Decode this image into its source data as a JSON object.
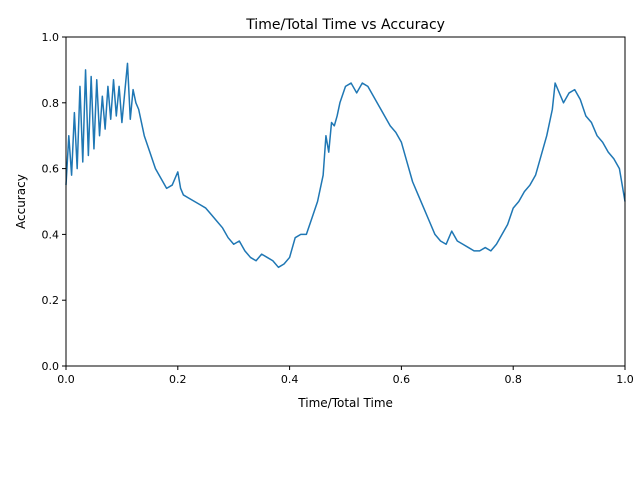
{
  "chart_data": {
    "type": "line",
    "title": "Time/Total Time vs Accuracy",
    "xlabel": "Time/Total Time",
    "ylabel": "Accuracy",
    "xlim": [
      0,
      1
    ],
    "ylim": [
      0,
      1
    ],
    "x_ticks": [
      "0.0",
      "0.2",
      "0.4",
      "0.6",
      "0.8",
      "1.0"
    ],
    "y_ticks": [
      "0.0",
      "0.2",
      "0.4",
      "0.6",
      "0.8",
      "1.0"
    ],
    "grid": false,
    "line_color": "#1f77b4",
    "series": [
      {
        "x": [
          0.0,
          0.005,
          0.01,
          0.015,
          0.02,
          0.025,
          0.03,
          0.035,
          0.04,
          0.045,
          0.05,
          0.055,
          0.06,
          0.065,
          0.07,
          0.075,
          0.08,
          0.085,
          0.09,
          0.095,
          0.1,
          0.105,
          0.11,
          0.115,
          0.12,
          0.125,
          0.13,
          0.135,
          0.14,
          0.15,
          0.16,
          0.17,
          0.18,
          0.19,
          0.2,
          0.205,
          0.21,
          0.22,
          0.23,
          0.24,
          0.25,
          0.26,
          0.27,
          0.28,
          0.29,
          0.3,
          0.31,
          0.32,
          0.33,
          0.34,
          0.35,
          0.36,
          0.37,
          0.38,
          0.39,
          0.4,
          0.41,
          0.42,
          0.43,
          0.44,
          0.45,
          0.46,
          0.465,
          0.47,
          0.475,
          0.48,
          0.485,
          0.49,
          0.5,
          0.51,
          0.52,
          0.53,
          0.54,
          0.55,
          0.56,
          0.57,
          0.58,
          0.59,
          0.6,
          0.61,
          0.62,
          0.63,
          0.64,
          0.65,
          0.66,
          0.67,
          0.68,
          0.69,
          0.7,
          0.71,
          0.72,
          0.73,
          0.74,
          0.75,
          0.76,
          0.77,
          0.78,
          0.79,
          0.8,
          0.81,
          0.82,
          0.83,
          0.84,
          0.85,
          0.86,
          0.87,
          0.875,
          0.88,
          0.89,
          0.9,
          0.91,
          0.92,
          0.93,
          0.94,
          0.95,
          0.96,
          0.97,
          0.98,
          0.99,
          1.0
        ],
        "y": [
          0.55,
          0.7,
          0.58,
          0.77,
          0.6,
          0.85,
          0.62,
          0.9,
          0.64,
          0.88,
          0.66,
          0.87,
          0.7,
          0.82,
          0.72,
          0.85,
          0.75,
          0.87,
          0.76,
          0.85,
          0.74,
          0.83,
          0.92,
          0.75,
          0.84,
          0.8,
          0.78,
          0.74,
          0.7,
          0.65,
          0.6,
          0.57,
          0.54,
          0.55,
          0.59,
          0.54,
          0.52,
          0.51,
          0.5,
          0.49,
          0.48,
          0.46,
          0.44,
          0.42,
          0.39,
          0.37,
          0.38,
          0.35,
          0.33,
          0.32,
          0.34,
          0.33,
          0.32,
          0.3,
          0.31,
          0.33,
          0.39,
          0.4,
          0.4,
          0.45,
          0.5,
          0.58,
          0.7,
          0.65,
          0.74,
          0.73,
          0.76,
          0.8,
          0.85,
          0.86,
          0.83,
          0.86,
          0.85,
          0.82,
          0.79,
          0.76,
          0.73,
          0.71,
          0.68,
          0.62,
          0.56,
          0.52,
          0.48,
          0.44,
          0.4,
          0.38,
          0.37,
          0.41,
          0.38,
          0.37,
          0.36,
          0.35,
          0.35,
          0.36,
          0.35,
          0.37,
          0.4,
          0.43,
          0.48,
          0.5,
          0.53,
          0.55,
          0.58,
          0.64,
          0.7,
          0.78,
          0.86,
          0.84,
          0.8,
          0.83,
          0.84,
          0.81,
          0.76,
          0.74,
          0.7,
          0.68,
          0.65,
          0.63,
          0.6,
          0.5
        ]
      }
    ]
  }
}
